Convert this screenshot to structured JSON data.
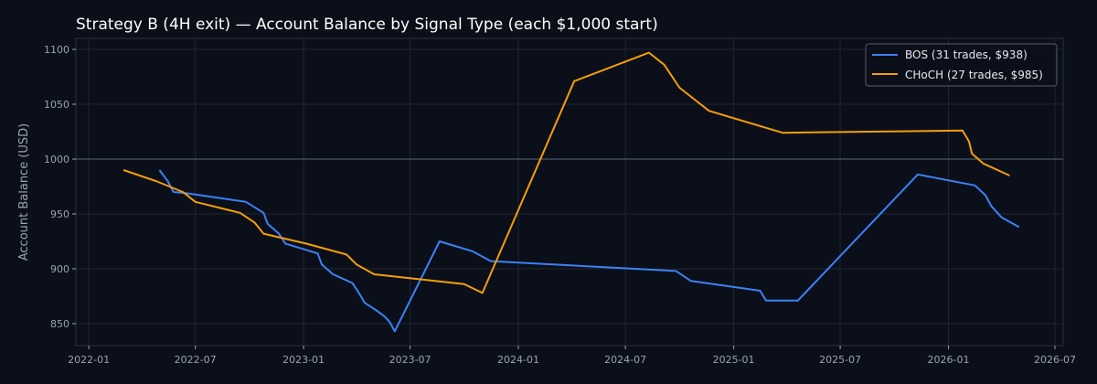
{
  "chart_data": {
    "type": "line",
    "title": "Strategy B (4H exit) — Account Balance by Signal Type (each $1,000 start)",
    "xlabel": "",
    "ylabel": "Account Balance (USD)",
    "xlim": [
      "2021-12-10",
      "2026-07-15"
    ],
    "ylim": [
      830,
      1110
    ],
    "yticks": [
      850,
      900,
      950,
      1000,
      1050,
      1100
    ],
    "xticks": [
      "2022-01",
      "2022-07",
      "2023-01",
      "2023-07",
      "2024-01",
      "2024-07",
      "2025-01",
      "2025-07",
      "2026-01",
      "2026-07"
    ],
    "reference_line": 1000,
    "grid": true,
    "legend_position": "top-right",
    "series": [
      {
        "name": "BOS (31 trades, $938)",
        "color": "#3b82f6",
        "points": [
          [
            "2022-05-01",
            990
          ],
          [
            "2022-05-15",
            980
          ],
          [
            "2022-05-25",
            970
          ],
          [
            "2022-06-15",
            969
          ],
          [
            "2022-09-25",
            961
          ],
          [
            "2022-10-25",
            951
          ],
          [
            "2022-11-01",
            941
          ],
          [
            "2022-11-20",
            932
          ],
          [
            "2022-12-01",
            923
          ],
          [
            "2023-01-25",
            914
          ],
          [
            "2023-02-01",
            904
          ],
          [
            "2023-02-20",
            895
          ],
          [
            "2023-03-25",
            887
          ],
          [
            "2023-04-05",
            878
          ],
          [
            "2023-04-15",
            869
          ],
          [
            "2023-05-05",
            862
          ],
          [
            "2023-05-20",
            856
          ],
          [
            "2023-05-28",
            851
          ],
          [
            "2023-06-05",
            843
          ],
          [
            "2023-08-20",
            925
          ],
          [
            "2023-10-15",
            916
          ],
          [
            "2023-11-15",
            907
          ],
          [
            "2024-09-25",
            898
          ],
          [
            "2024-10-20",
            889
          ],
          [
            "2025-02-15",
            880
          ],
          [
            "2025-02-25",
            871
          ],
          [
            "2025-04-20",
            871
          ],
          [
            "2025-11-10",
            986
          ],
          [
            "2026-02-15",
            976
          ],
          [
            "2026-03-05",
            967
          ],
          [
            "2026-03-15",
            957
          ],
          [
            "2026-04-01",
            947
          ],
          [
            "2026-05-01",
            938
          ]
        ]
      },
      {
        "name": "CHoCH (27 trades, $985)",
        "color": "#f59e0b",
        "points": [
          [
            "2022-03-01",
            990
          ],
          [
            "2022-04-25",
            980
          ],
          [
            "2022-06-10",
            970
          ],
          [
            "2022-07-01",
            961
          ],
          [
            "2022-09-15",
            951
          ],
          [
            "2022-10-10",
            942
          ],
          [
            "2022-10-25",
            932
          ],
          [
            "2023-01-05",
            923
          ],
          [
            "2023-03-15",
            913
          ],
          [
            "2023-04-01",
            904
          ],
          [
            "2023-05-01",
            895
          ],
          [
            "2023-10-01",
            886
          ],
          [
            "2023-11-01",
            878
          ],
          [
            "2024-04-05",
            1071
          ],
          [
            "2024-08-10",
            1097
          ],
          [
            "2024-09-05",
            1086
          ],
          [
            "2024-10-01",
            1065
          ],
          [
            "2024-11-20",
            1044
          ],
          [
            "2025-03-25",
            1024
          ],
          [
            "2026-01-25",
            1026
          ],
          [
            "2026-02-05",
            1016
          ],
          [
            "2026-02-10",
            1005
          ],
          [
            "2026-03-01",
            996
          ],
          [
            "2026-04-15",
            985
          ]
        ]
      }
    ]
  }
}
